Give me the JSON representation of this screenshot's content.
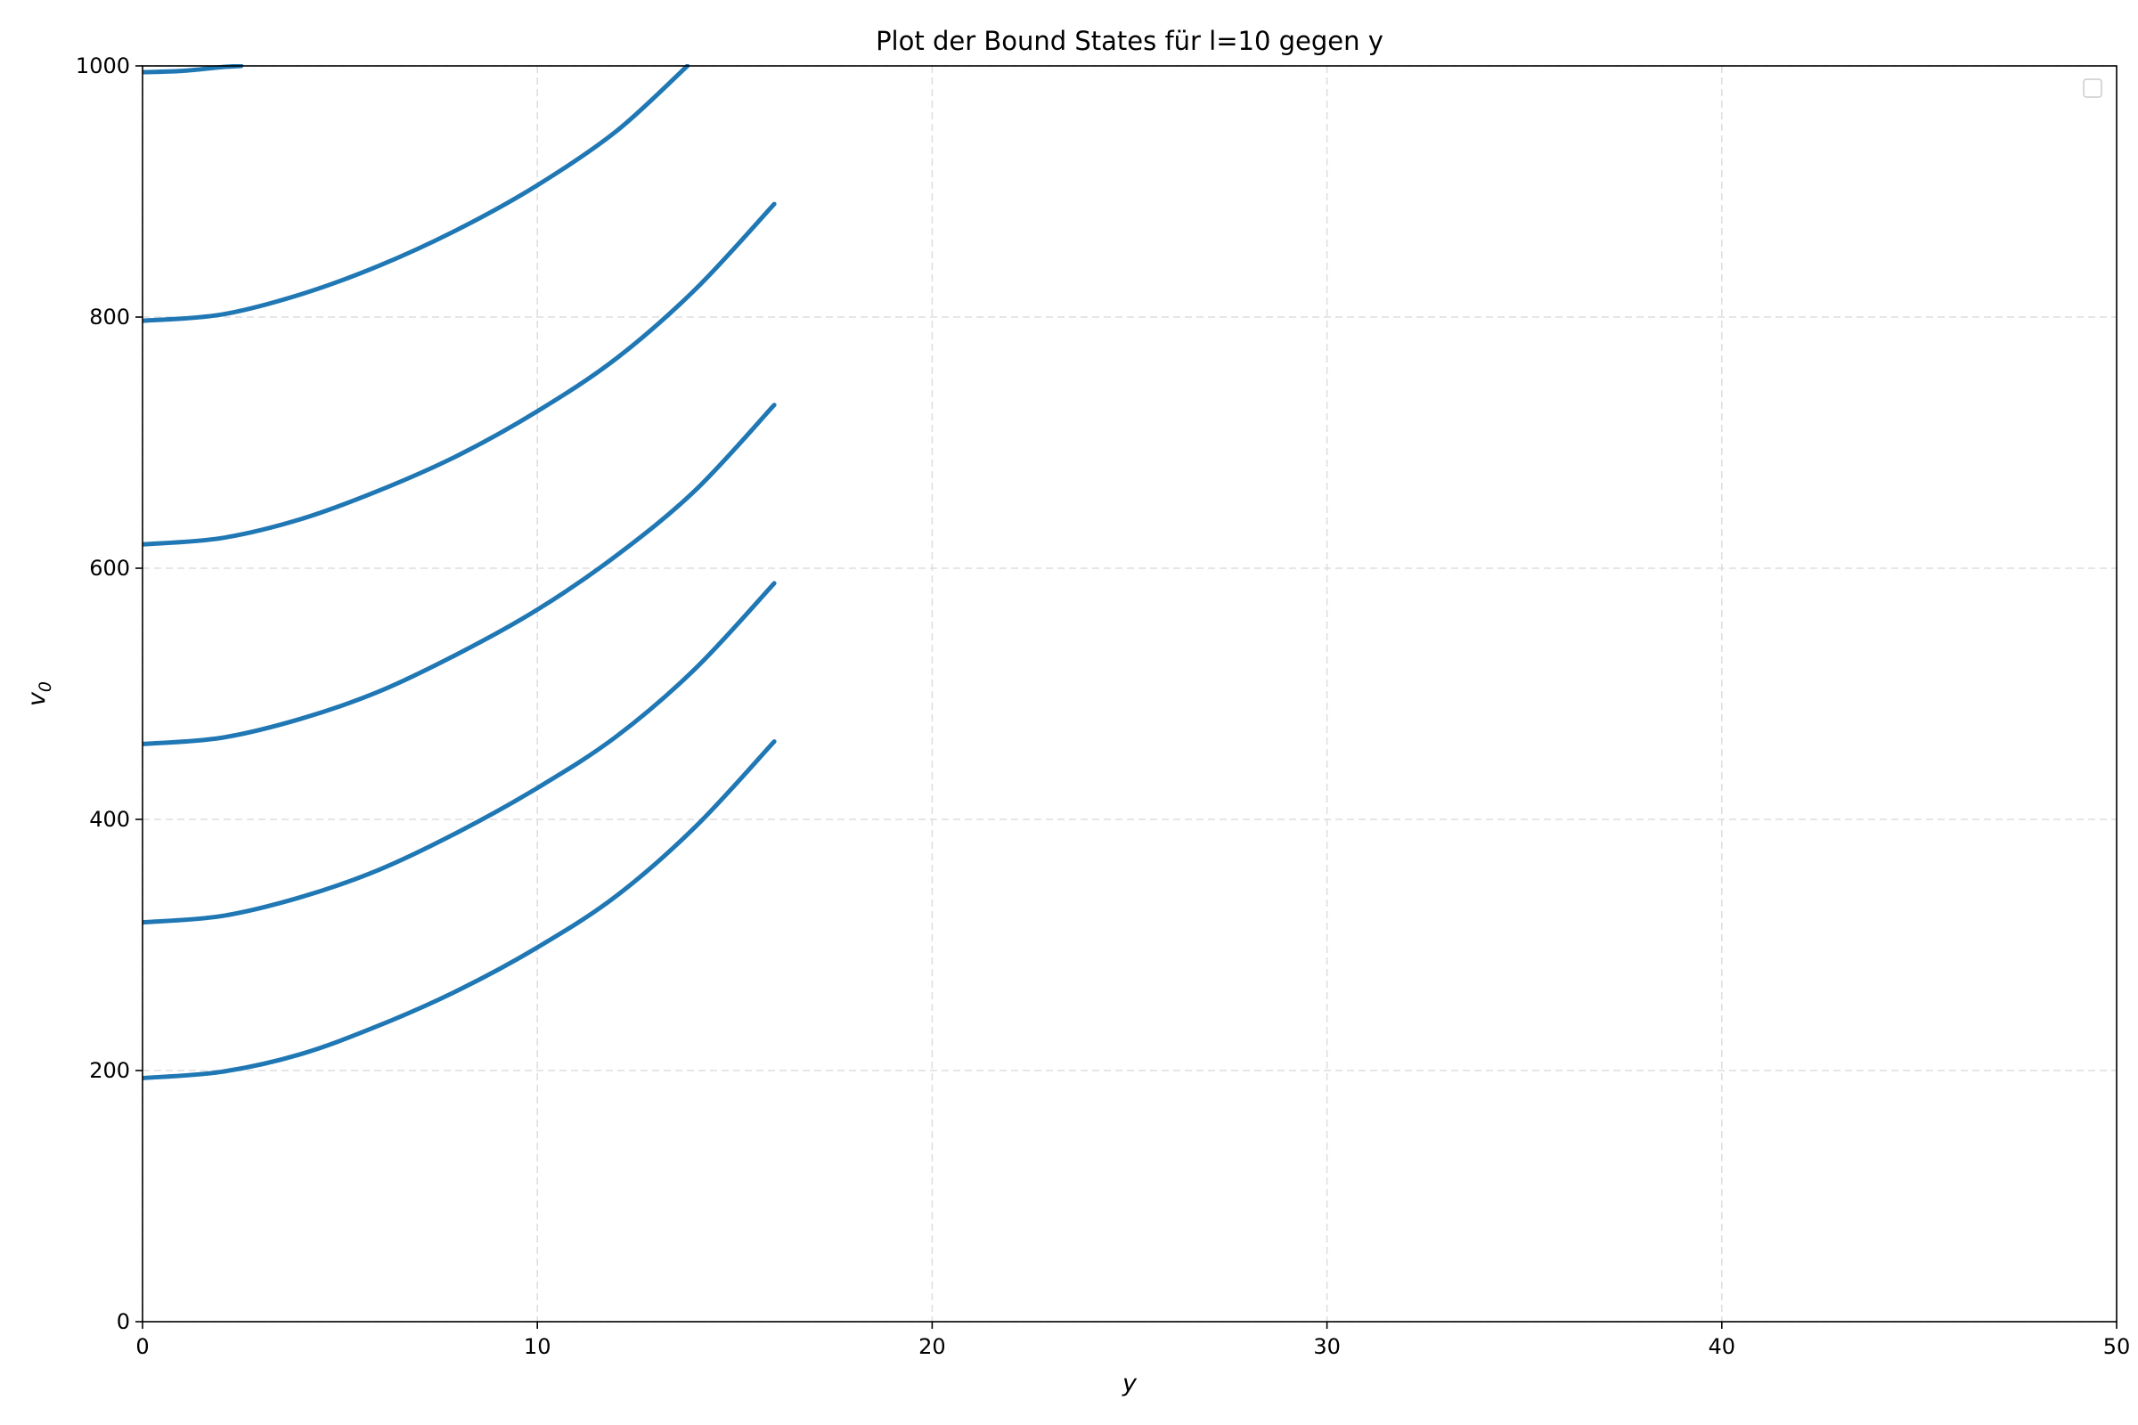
{
  "chart_data": {
    "type": "line",
    "title": "Plot der Bound States für l=10 gegen y",
    "xlabel": "y",
    "ylabel": "v",
    "ylabel_subscript": "0",
    "xlim": [
      0,
      50
    ],
    "ylim": [
      0,
      1000
    ],
    "x_ticks": [
      "0",
      "10",
      "20",
      "30",
      "40",
      "50"
    ],
    "y_ticks": [
      "0",
      "200",
      "400",
      "600",
      "800",
      "1000"
    ],
    "grid": true,
    "legend": {
      "placement": "top-right",
      "entries": []
    },
    "color": "#1f77b4",
    "series": [
      {
        "x": [
          0,
          2,
          4,
          6,
          8,
          10,
          12,
          14,
          16
        ],
        "values": [
          194,
          199,
          213,
          236,
          264,
          298,
          339,
          394,
          462
        ]
      },
      {
        "x": [
          0,
          2,
          4,
          6,
          8,
          10,
          12,
          14,
          16
        ],
        "values": [
          318,
          323,
          338,
          360,
          390,
          425,
          466,
          520,
          588
        ]
      },
      {
        "x": [
          0,
          2,
          4,
          6,
          8,
          10,
          12,
          14,
          16
        ],
        "values": [
          460,
          465,
          480,
          502,
          532,
          567,
          610,
          662,
          730
        ]
      },
      {
        "x": [
          0,
          2,
          4,
          6,
          8,
          10,
          12,
          14,
          16
        ],
        "values": [
          619,
          624,
          639,
          662,
          690,
          725,
          767,
          822,
          890
        ]
      },
      {
        "x": [
          0,
          2,
          4,
          6,
          8,
          10,
          12,
          13.8
        ],
        "values": [
          797,
          802,
          818,
          841,
          870,
          905,
          948,
          1000
        ]
      },
      {
        "x": [
          0,
          1,
          2,
          2.5
        ],
        "values": [
          995,
          996,
          999,
          1000
        ]
      }
    ]
  }
}
